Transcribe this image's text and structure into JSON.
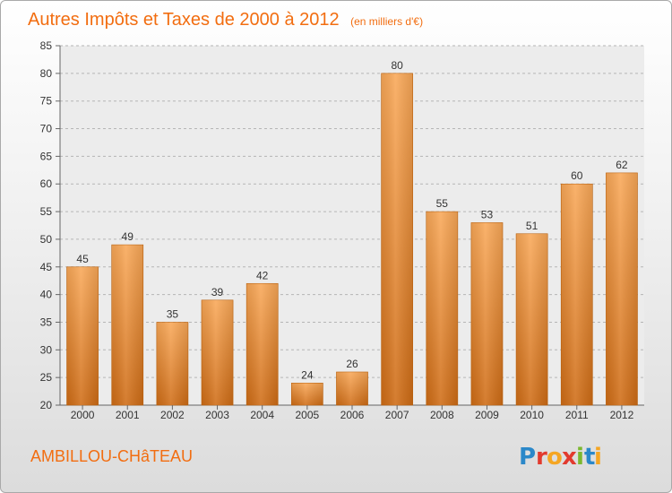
{
  "chart_data": {
    "type": "bar",
    "title": "Autres Impôts et Taxes de 2000 à 2012",
    "subtitle": "(en milliers d'€)",
    "categories": [
      "2000",
      "2001",
      "2002",
      "2003",
      "2004",
      "2005",
      "2006",
      "2007",
      "2008",
      "2009",
      "2010",
      "2011",
      "2012"
    ],
    "values": [
      45,
      49,
      35,
      39,
      42,
      24,
      26,
      80,
      55,
      53,
      51,
      60,
      62
    ],
    "ylim": [
      20,
      85
    ],
    "yticks": [
      20,
      25,
      30,
      35,
      40,
      45,
      50,
      55,
      60,
      65,
      70,
      75,
      80,
      85
    ],
    "grid": true,
    "bar_color": "#f5993b"
  },
  "footer": {
    "city": "AMBILLOU-CHâTEAU",
    "logo": {
      "text": "Proxiti",
      "letters": [
        {
          "ch": "P",
          "color": "#2b88c9"
        },
        {
          "ch": "r",
          "color": "#e23a2e"
        },
        {
          "ch": "o",
          "color": "#f5a623"
        },
        {
          "ch": "x",
          "color": "#e23a2e"
        },
        {
          "ch": "i",
          "color": "#7cb82f"
        },
        {
          "ch": "t",
          "color": "#2b88c9"
        },
        {
          "ch": "i",
          "color": "#f5a623"
        }
      ]
    }
  }
}
